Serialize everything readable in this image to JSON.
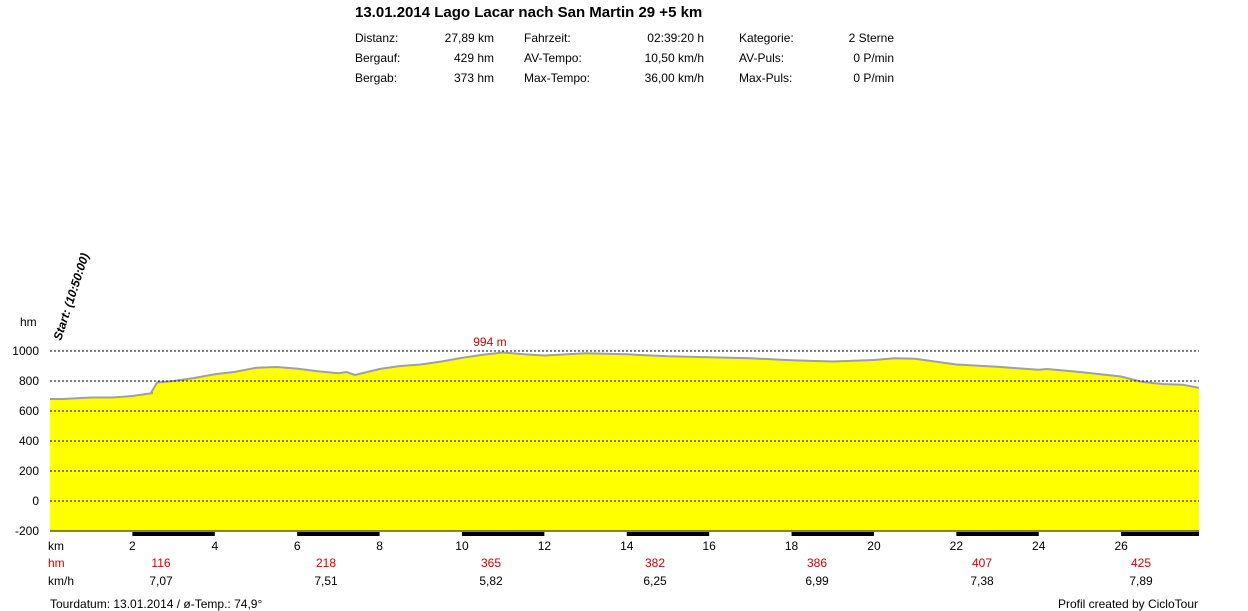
{
  "header": {
    "title": "13.01.2014 Lago Lacar nach San Martin 29 +5 km",
    "stats": [
      {
        "label": "Distanz:",
        "value": "27,89 km"
      },
      {
        "label": "Bergauf:",
        "value": "429 hm"
      },
      {
        "label": "Bergab:",
        "value": "373 hm"
      },
      {
        "label": "Fahrzeit:",
        "value": "02:39:20 h"
      },
      {
        "label": "AV-Tempo:",
        "value": "10,50 km/h"
      },
      {
        "label": "Max-Tempo:",
        "value": "36,00 km/h"
      },
      {
        "label": "Kategorie:",
        "value": "2 Sterne"
      },
      {
        "label": "AV-Puls:",
        "value": "0 P/min"
      },
      {
        "label": "Max-Puls:",
        "value": "0 P/min"
      }
    ]
  },
  "chart_data": {
    "type": "area",
    "ylabel": "hm",
    "xlabel": "km",
    "xlim": [
      0,
      27.89
    ],
    "ylim": [
      -200,
      1000
    ],
    "yticks": [
      "1000",
      "800",
      "600",
      "400",
      "200",
      "0",
      "-200"
    ],
    "xticks": [
      "2",
      "4",
      "6",
      "8",
      "10",
      "12",
      "14",
      "16",
      "18",
      "20",
      "22",
      "24",
      "26"
    ],
    "grid": "dashed horizontal",
    "fill_color": "#ffff00",
    "line_color": "#a0a0a0",
    "start_label": "Start: (10:50:00)",
    "max_annotation": "994 m",
    "max_position": {
      "x": 10.8,
      "y": 994
    },
    "x": [
      0,
      0.3,
      1,
      1.5,
      2,
      2.5,
      2.45,
      2.6,
      3,
      3.5,
      4,
      4.5,
      5,
      5.5,
      6,
      6.5,
      7,
      7.2,
      7.4,
      8,
      8.5,
      9,
      9.5,
      10,
      10.5,
      11,
      11.5,
      12,
      13,
      14,
      15,
      16,
      17,
      18,
      19,
      20,
      20.5,
      21,
      22,
      23,
      24,
      24.2,
      25,
      26,
      26.5,
      27,
      27.5,
      27.89
    ],
    "y": [
      680,
      680,
      690,
      690,
      700,
      720,
      720,
      790,
      800,
      820,
      845,
      862,
      888,
      893,
      883,
      865,
      852,
      860,
      840,
      880,
      900,
      910,
      930,
      955,
      975,
      990,
      978,
      970,
      985,
      978,
      965,
      958,
      952,
      938,
      930,
      940,
      952,
      948,
      910,
      895,
      875,
      880,
      860,
      830,
      795,
      780,
      775,
      755
    ],
    "rows": [
      {
        "label": "hm",
        "color": "#d00000",
        "values": [
          "116",
          "218",
          "365",
          "382",
          "386",
          "407",
          "425"
        ]
      },
      {
        "label": "km/h",
        "color": "#000000",
        "values": [
          "7,07",
          "7,51",
          "5,82",
          "6,25",
          "6,99",
          "7,38",
          "7,89"
        ]
      }
    ]
  },
  "footer": {
    "left": "Tourdatum: 13.01.2014  /  ø-Temp.: 74,9°",
    "right": "Profil created by CicloTour"
  }
}
